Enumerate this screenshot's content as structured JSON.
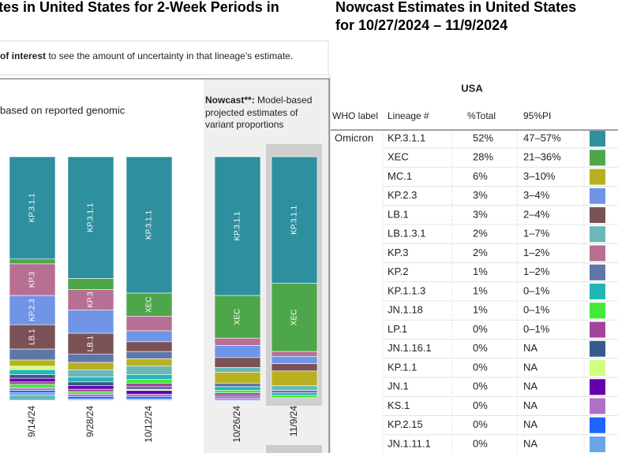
{
  "left": {
    "title": "tes in United States for 2-Week Periods in",
    "hint_bold": "of interest",
    "hint_rest": " to see the amount of uncertainty in that lineage's estimate.",
    "note": "based on reported genomic",
    "nowcast_bold": "Nowcast**:",
    "nowcast_lines": [
      " Model-based",
      "projected estimates of",
      "variant proportions"
    ]
  },
  "chart_data": {
    "type": "stacked-bar",
    "bars": [
      {
        "date": "9/14/24",
        "segments": [
          {
            "value": 42,
            "color": "#2e8f9e",
            "label": "KP.3.1.1"
          },
          {
            "value": 2,
            "color": "#4ea64a"
          },
          {
            "value": 13,
            "color": "#b86f94",
            "label": "KP.3"
          },
          {
            "value": 12,
            "color": "#7094e6",
            "label": "KP.2.3"
          },
          {
            "value": 10,
            "color": "#7a5256",
            "label": "LB.1"
          },
          {
            "value": 4.5,
            "color": "#5f77a8"
          },
          {
            "value": 2.5,
            "color": "#b8b020"
          },
          {
            "value": 1.5,
            "color": "#cfff80"
          },
          {
            "value": 2,
            "color": "#22b6b8"
          },
          {
            "value": 1.5,
            "color": "#365a8c"
          },
          {
            "value": 1.5,
            "color": "#6600aa"
          },
          {
            "value": 1,
            "color": "#a0449e"
          },
          {
            "value": 1.5,
            "color": "#44e83a"
          },
          {
            "value": 1,
            "color": "#b070c8"
          },
          {
            "value": 1,
            "color": "#1a66ff"
          },
          {
            "value": 1,
            "color": "#6aa6e6"
          },
          {
            "value": 2,
            "color": "#6ab8b8"
          }
        ]
      },
      {
        "date": "9/28/24",
        "segments": [
          {
            "value": 50,
            "color": "#2e8f9e",
            "label": "KP.3.1.1"
          },
          {
            "value": 4.5,
            "color": "#4ea64a"
          },
          {
            "value": 8.5,
            "color": "#b86f94",
            "label": "KP.3"
          },
          {
            "value": 9.5,
            "color": "#7094e6"
          },
          {
            "value": 8.5,
            "color": "#7a5256",
            "label": "LB.1"
          },
          {
            "value": 3.5,
            "color": "#5f77a8"
          },
          {
            "value": 3,
            "color": "#b8b020"
          },
          {
            "value": 3,
            "color": "#6ab8b8"
          },
          {
            "value": 2,
            "color": "#22b6b8"
          },
          {
            "value": 1.5,
            "color": "#365a8c"
          },
          {
            "value": 1.5,
            "color": "#6600aa"
          },
          {
            "value": 1,
            "color": "#a0449e"
          },
          {
            "value": 1,
            "color": "#44e83a"
          },
          {
            "value": 1,
            "color": "#b070c8"
          },
          {
            "value": 1,
            "color": "#1a66ff"
          },
          {
            "value": 0.5,
            "color": "#6aa6e6"
          }
        ]
      },
      {
        "date": "10/12/24",
        "segments": [
          {
            "value": 56,
            "color": "#2e8f9e",
            "label": "KP.3.1.1"
          },
          {
            "value": 9.5,
            "color": "#4ea64a",
            "label": "XEC"
          },
          {
            "value": 6,
            "color": "#b86f94"
          },
          {
            "value": 4.5,
            "color": "#7094e6"
          },
          {
            "value": 4,
            "color": "#7a5256"
          },
          {
            "value": 3,
            "color": "#5f77a8"
          },
          {
            "value": 3,
            "color": "#b8b020"
          },
          {
            "value": 3.5,
            "color": "#6ab8b8"
          },
          {
            "value": 2,
            "color": "#22b6b8"
          },
          {
            "value": 1.5,
            "color": "#44e83a"
          },
          {
            "value": 1.5,
            "color": "#a0449e"
          },
          {
            "value": 1,
            "color": "#365a8c"
          },
          {
            "value": 0.5,
            "color": "#cfff80"
          },
          {
            "value": 1.5,
            "color": "#6600aa"
          },
          {
            "value": 1,
            "color": "#b070c8"
          },
          {
            "value": 1,
            "color": "#1a66ff"
          },
          {
            "value": 0.5,
            "color": "#6aa6e6"
          }
        ]
      },
      {
        "date": "10/26/24",
        "segments": [
          {
            "value": 57,
            "color": "#2e8f9e",
            "label": "KP.3.1.1"
          },
          {
            "value": 17.5,
            "color": "#4ea64a",
            "label": "XEC"
          },
          {
            "value": 3,
            "color": "#b86f94"
          },
          {
            "value": 5,
            "color": "#7094e6"
          },
          {
            "value": 4,
            "color": "#7a5256"
          },
          {
            "value": 2,
            "color": "#6ab8b8"
          },
          {
            "value": 4.5,
            "color": "#b8b020"
          },
          {
            "value": 1.5,
            "color": "#5f77a8"
          },
          {
            "value": 1.5,
            "color": "#22b6b8"
          },
          {
            "value": 1,
            "color": "#44e83a"
          },
          {
            "value": 1,
            "color": "#a0449e"
          },
          {
            "value": 0.5,
            "color": "#365a8c"
          },
          {
            "value": 0.5,
            "color": "#6600aa"
          },
          {
            "value": 0.5,
            "color": "#b070c8"
          },
          {
            "value": 0.5,
            "color": "#1a66ff"
          }
        ]
      },
      {
        "date": "11/9/24",
        "segments": [
          {
            "value": 52,
            "color": "#2e8f9e",
            "label": "KP.3.1.1"
          },
          {
            "value": 28,
            "color": "#4ea64a",
            "label": "XEC"
          },
          {
            "value": 2,
            "color": "#b86f94"
          },
          {
            "value": 3,
            "color": "#7094e6"
          },
          {
            "value": 3,
            "color": "#7a5256"
          },
          {
            "value": 6,
            "color": "#b8b020"
          },
          {
            "value": 2,
            "color": "#6ab8b8"
          },
          {
            "value": 1,
            "color": "#5f77a8"
          },
          {
            "value": 1,
            "color": "#22b6b8"
          },
          {
            "value": 1,
            "color": "#44e83a"
          }
        ]
      }
    ]
  },
  "right": {
    "title_lines": [
      "Nowcast Estimates in United States",
      "for 10/27/2024 – 11/9/2024"
    ],
    "region": "USA",
    "table": {
      "headers": [
        "WHO label",
        "Lineage #",
        "%Total",
        "95%PI"
      ],
      "rows": [
        {
          "who": "Omicron",
          "lineage": "KP.3.1.1",
          "total": "52%",
          "pi": "47–57%",
          "color": "#2e8f9e"
        },
        {
          "lineage": "XEC",
          "total": "28%",
          "pi": "21–36%",
          "color": "#4ea64a"
        },
        {
          "lineage": "MC.1",
          "total": "6%",
          "pi": "3–10%",
          "color": "#b8b020"
        },
        {
          "lineage": "KP.2.3",
          "total": "3%",
          "pi": "3–4%",
          "color": "#7094e6"
        },
        {
          "lineage": "LB.1",
          "total": "3%",
          "pi": "2–4%",
          "color": "#7a5256"
        },
        {
          "lineage": "LB.1.3.1",
          "total": "2%",
          "pi": "1–7%",
          "color": "#6ab8b8"
        },
        {
          "lineage": "KP.3",
          "total": "2%",
          "pi": "1–2%",
          "color": "#b86f94"
        },
        {
          "lineage": "KP.2",
          "total": "1%",
          "pi": "1–2%",
          "color": "#5f77a8"
        },
        {
          "lineage": "KP.1.1.3",
          "total": "1%",
          "pi": "0–1%",
          "color": "#22b6b8"
        },
        {
          "lineage": "JN.1.18",
          "total": "1%",
          "pi": "0–1%",
          "color": "#44e83a"
        },
        {
          "lineage": "LP.1",
          "total": "0%",
          "pi": "0–1%",
          "color": "#a0449e"
        },
        {
          "lineage": "JN.1.16.1",
          "total": "0%",
          "pi": "NA",
          "color": "#365a8c"
        },
        {
          "lineage": "KP.1.1",
          "total": "0%",
          "pi": "NA",
          "color": "#cfff80"
        },
        {
          "lineage": "JN.1",
          "total": "0%",
          "pi": "NA",
          "color": "#6600aa"
        },
        {
          "lineage": "KS.1",
          "total": "0%",
          "pi": "NA",
          "color": "#b070c8"
        },
        {
          "lineage": "KP.2.15",
          "total": "0%",
          "pi": "NA",
          "color": "#1a66ff"
        },
        {
          "lineage": "JN.1.11.1",
          "total": "0%",
          "pi": "NA",
          "color": "#6aa6e6"
        }
      ]
    }
  }
}
